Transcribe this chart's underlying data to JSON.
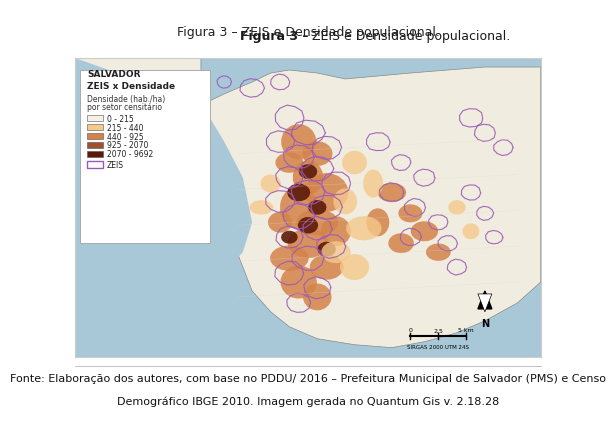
{
  "title_bold": "Figura 3 –",
  "title_regular": " ZEIS e Densidade populacional.",
  "source_line1": "Fonte: Elaboração dos autores, com base no PDDU/ 2016 – Prefeitura Municipal de Salvador (PMS) e Censo",
  "source_line2": "Demográfico IBGE 2010. Imagem gerada no Quantum Gis v. 2.18.28",
  "legend_title1": "SALVADOR",
  "legend_title2": "ZEIS x Densidade",
  "legend_subtitle": "Densidade (hab./ha)\npor setor censitário",
  "legend_items": [
    {
      "label": "0 - 215",
      "color": "#f5f0e8"
    },
    {
      "label": "215 - 440",
      "color": "#f5c98a"
    },
    {
      "label": "440 - 925",
      "color": "#d4824a"
    },
    {
      "label": "925 - 2070",
      "color": "#a0522d"
    },
    {
      "label": "2070 - 9692",
      "color": "#5c1a0a"
    }
  ],
  "zeis_label": "ZEIS",
  "zeis_color": "#9b59b6",
  "map_bg": "#a8c8d8",
  "land_color": "#f0ece0",
  "scalebar_text": "0    2,5    5 km",
  "crs_text": "SIRGAS 2000 UTM 24S",
  "title_fontsize": 9,
  "source_fontsize": 8,
  "legend_fontsize": 7,
  "figure_bg": "#ffffff",
  "map_frame_color": "#cccccc"
}
